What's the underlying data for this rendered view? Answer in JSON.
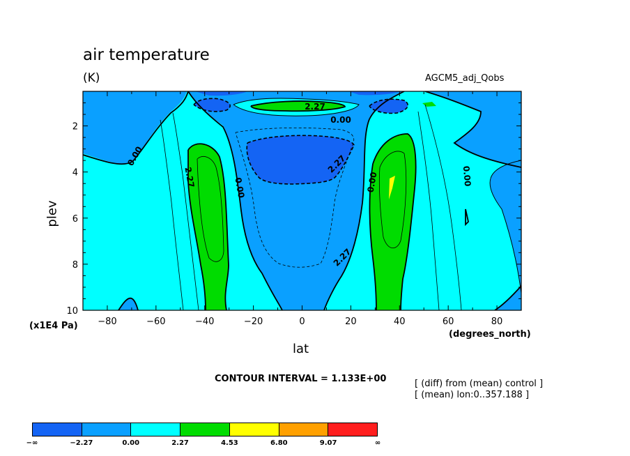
{
  "chart_data": {
    "type": "heatmap",
    "title": "air temperature",
    "units": "(K)",
    "dataset": "AGCM5_adj_Qobs",
    "xlabel": "lat",
    "xunits": "(degrees_north)",
    "ylabel": "plev",
    "yunits": "(x1E4 Pa)",
    "xlim": [
      -90,
      90
    ],
    "ylim": [
      10,
      0.5
    ],
    "x_ticks": [
      -80,
      -60,
      -40,
      -20,
      0,
      20,
      40,
      60,
      80
    ],
    "x_tick_labels": [
      "−80",
      "−60",
      "−40",
      "−20",
      "0",
      "20",
      "40",
      "60",
      "80"
    ],
    "y_ticks": [
      2,
      4,
      6,
      8,
      10
    ],
    "contour_interval_text": "CONTOUR INTERVAL = 1.133E+00",
    "contour_labels": [
      "2.27",
      "0.00",
      "0.00",
      "2.27",
      "0.00",
      "2.27",
      "0.00",
      "2.27",
      "0.00"
    ],
    "notes": [
      "[ (diff) from (mean) control ]",
      "[ (mean) lon:0..357.188 ]"
    ],
    "levels": [
      -2.27,
      0.0,
      2.27,
      4.53,
      6.8,
      9.07
    ],
    "colors": [
      "#1464f4",
      "#0aa0ff",
      "#00ffff",
      "#00dc00",
      "#ffff00",
      "#ffa000",
      "#ff1e1e"
    ],
    "colorbar_labels": [
      "−∞",
      "−2.27",
      "0.00",
      "2.27",
      "4.53",
      "6.80",
      "9.07",
      "∞"
    ],
    "colorbar": {
      "low_label": "−∞",
      "l1": "−2.27",
      "l2": "0.00",
      "l3": "2.27",
      "l4": "4.53",
      "l5": "6.80",
      "l6": "9.07",
      "high_label": "∞"
    }
  }
}
